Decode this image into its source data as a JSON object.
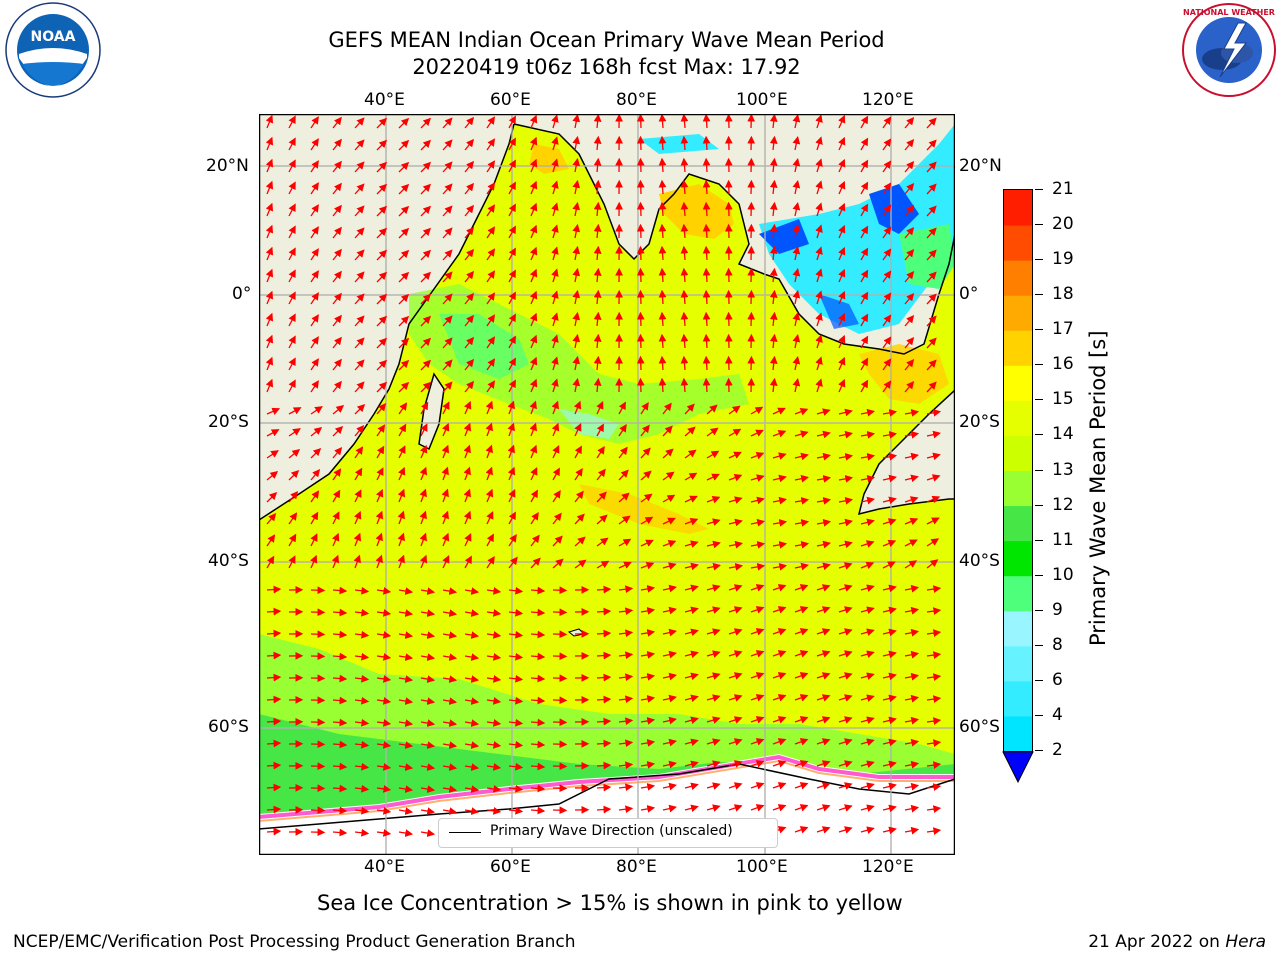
{
  "header": {
    "title_line1": "GEFS MEAN Indian Ocean Primary Wave Mean Period",
    "title_line2": "20220419 t06z 168h fcst   Max: 17.92"
  },
  "logos": {
    "left": "NOAA",
    "right": "NATIONAL WEATHER SERVICE"
  },
  "map": {
    "lon_ticks": [
      "40°E",
      "60°E",
      "80°E",
      "100°E",
      "120°E"
    ],
    "lat_ticks": [
      "20°N",
      "0°",
      "20°S",
      "40°S",
      "60°S"
    ],
    "legend_label": "Primary Wave Direction (unscaled)"
  },
  "colorbar": {
    "label": "Primary Wave Mean Period [s]",
    "levels": [
      "2",
      "4",
      "6",
      "8",
      "9",
      "10",
      "11",
      "12",
      "13",
      "14",
      "15",
      "16",
      "17",
      "18",
      "19",
      "20",
      "21"
    ],
    "colors": [
      "#0055ff",
      "#00e5ff",
      "#33ecff",
      "#66f2ff",
      "#99f5ff",
      "#4dff7a",
      "#00e600",
      "#47e647",
      "#99ff33",
      "#ccff00",
      "#e6ff00",
      "#ffff00",
      "#ffd200",
      "#ffaa00",
      "#ff7f00",
      "#ff4c00",
      "#ff1e00",
      "#ff0000"
    ],
    "extend_color": "#0000ff"
  },
  "subtitle": "Sea Ice Concentration > 15% is shown in pink to yellow",
  "footer": {
    "left": "NCEP/EMC/Verification Post Processing Product Generation Branch",
    "right_prefix": "21 Apr 2022 on ",
    "right_host": "Hera"
  }
}
